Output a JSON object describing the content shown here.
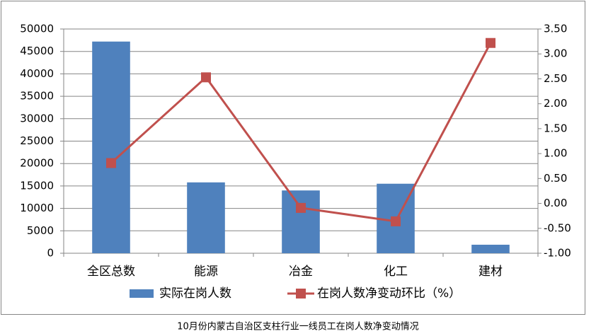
{
  "chart_data": {
    "type": "bar",
    "title": "10月份内蒙古自治区支柱行业一线员工在岗人数净变动情况",
    "categories": [
      "全区总数",
      "能源",
      "冶金",
      "化工",
      "建材"
    ],
    "series": [
      {
        "name": "实际在岗人数",
        "type": "bar",
        "color": "#4f81bd",
        "values": [
          47200,
          15800,
          14000,
          15500,
          1900
        ]
      },
      {
        "name": "在岗人数净变动环比（%）",
        "type": "line",
        "axis": "y2",
        "color": "#c0504d",
        "values": [
          0.81,
          2.53,
          -0.09,
          -0.36,
          3.22
        ]
      }
    ],
    "ylim": [
      0,
      50000
    ],
    "yticks": [
      0,
      5000,
      10000,
      15000,
      20000,
      25000,
      30000,
      35000,
      40000,
      45000,
      50000
    ],
    "y2lim": [
      -1,
      3.5
    ],
    "y2ticks": [
      {
        "value": -1,
        "label": "-1.00"
      },
      {
        "value": -0.5,
        "label": "-0.50"
      },
      {
        "value": 0,
        "label": "0.00"
      },
      {
        "value": 0.5,
        "label": "0.50"
      },
      {
        "value": 1,
        "label": "1.00"
      },
      {
        "value": 1.5,
        "label": "1.50"
      },
      {
        "value": 2,
        "label": "2.00"
      },
      {
        "value": 2.5,
        "label": "2.50"
      },
      {
        "value": 3,
        "label": "3.00"
      },
      {
        "value": 3.5,
        "label": "3.50"
      }
    ],
    "grid": true
  }
}
